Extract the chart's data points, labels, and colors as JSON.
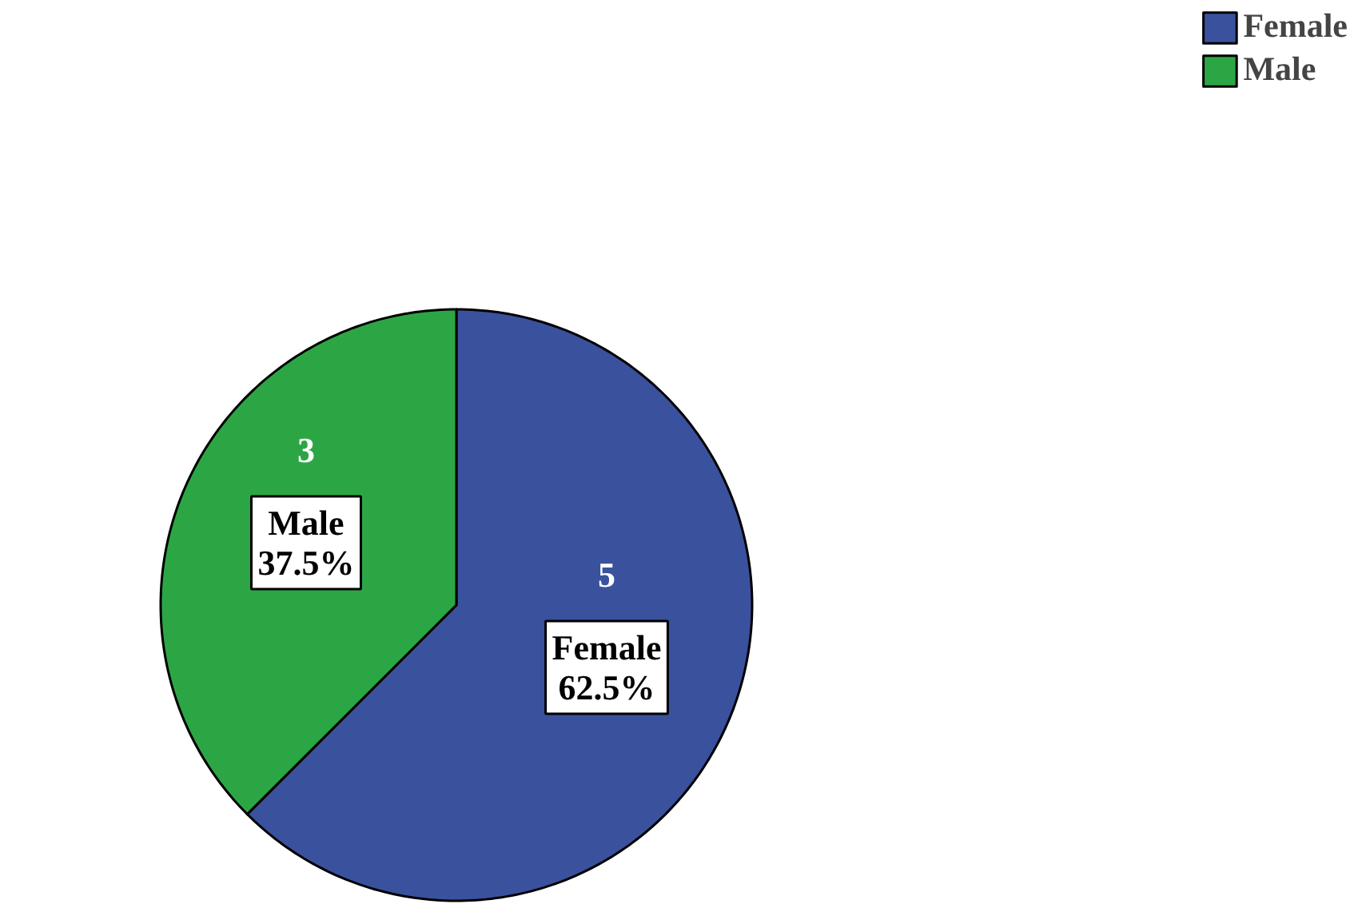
{
  "chart_data": {
    "type": "pie",
    "categories": [
      "Female",
      "Male"
    ],
    "values": [
      5,
      3
    ],
    "colors": [
      "#3a519d",
      "#2ca644"
    ],
    "data_labels": true,
    "annotations": [
      "Female\n62.5%",
      "Male\n37.5%"
    ],
    "legend": "top right"
  }
}
